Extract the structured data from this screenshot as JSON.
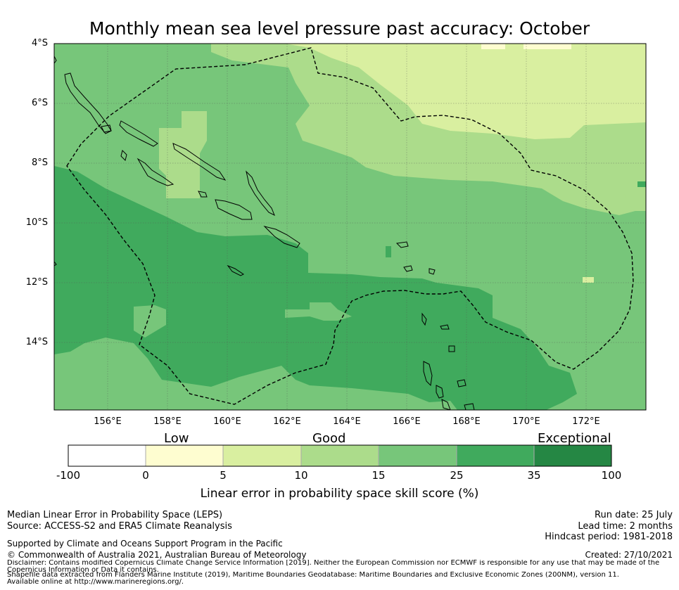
{
  "title": "Monthly mean sea level pressure past accuracy: October",
  "map": {
    "lat_labels": [
      "4°S",
      "6°S",
      "8°S",
      "10°S",
      "12°S",
      "14°S"
    ],
    "lon_labels": [
      "156°E",
      "158°E",
      "160°E",
      "162°E",
      "164°E",
      "166°E",
      "168°E",
      "170°E",
      "172°E"
    ],
    "extent": {
      "lon": [
        154.2,
        174.0
      ],
      "lat": [
        -4.0,
        -16.3
      ]
    }
  },
  "colorbar": {
    "category_labels": [
      "Low",
      "Good",
      "Exceptional"
    ],
    "tick_labels": [
      "-100",
      "0",
      "5",
      "10",
      "15",
      "25",
      "35",
      "100"
    ],
    "colors": [
      "#ffffff",
      "#fefdd0",
      "#d9efa0",
      "#acdc8b",
      "#77c67a",
      "#40aa5d",
      "#258744"
    ],
    "title": "Linear error in probability space skill score (%)"
  },
  "footer": {
    "left_line1": "Median Linear Error in Probability Space (LEPS)",
    "left_line2": "Source: ACCESS-S2 and ERA5 Climate Reanalysis",
    "support": "Supported by Climate and Oceans Support Program in the Pacific",
    "copyright": "© Commonwealth of Australia 2021, Australian Bureau of Meteorology",
    "disclaimer1": "Disclaimer: Contains modified Copernicus Climate Change Service Information [2019]. Neither the European Commission nor ECMWF is responsible for any use that may be made of the Copernicus Information or Data it contains.",
    "disclaimer2": "Shapefile data extracted from Flanders Marine Institute (2019), Maritime Boundaries Geodatabase: Maritime Boundaries and Exclusive Economic Zones (200NM), version 11. Available online at http://www.marineregions.org/.",
    "run_date": "Run date: 25 July",
    "lead_time": "Lead time: 2 months",
    "hindcast": "Hindcast period: 1981-2018",
    "created": "Created: 27/10/2021"
  }
}
